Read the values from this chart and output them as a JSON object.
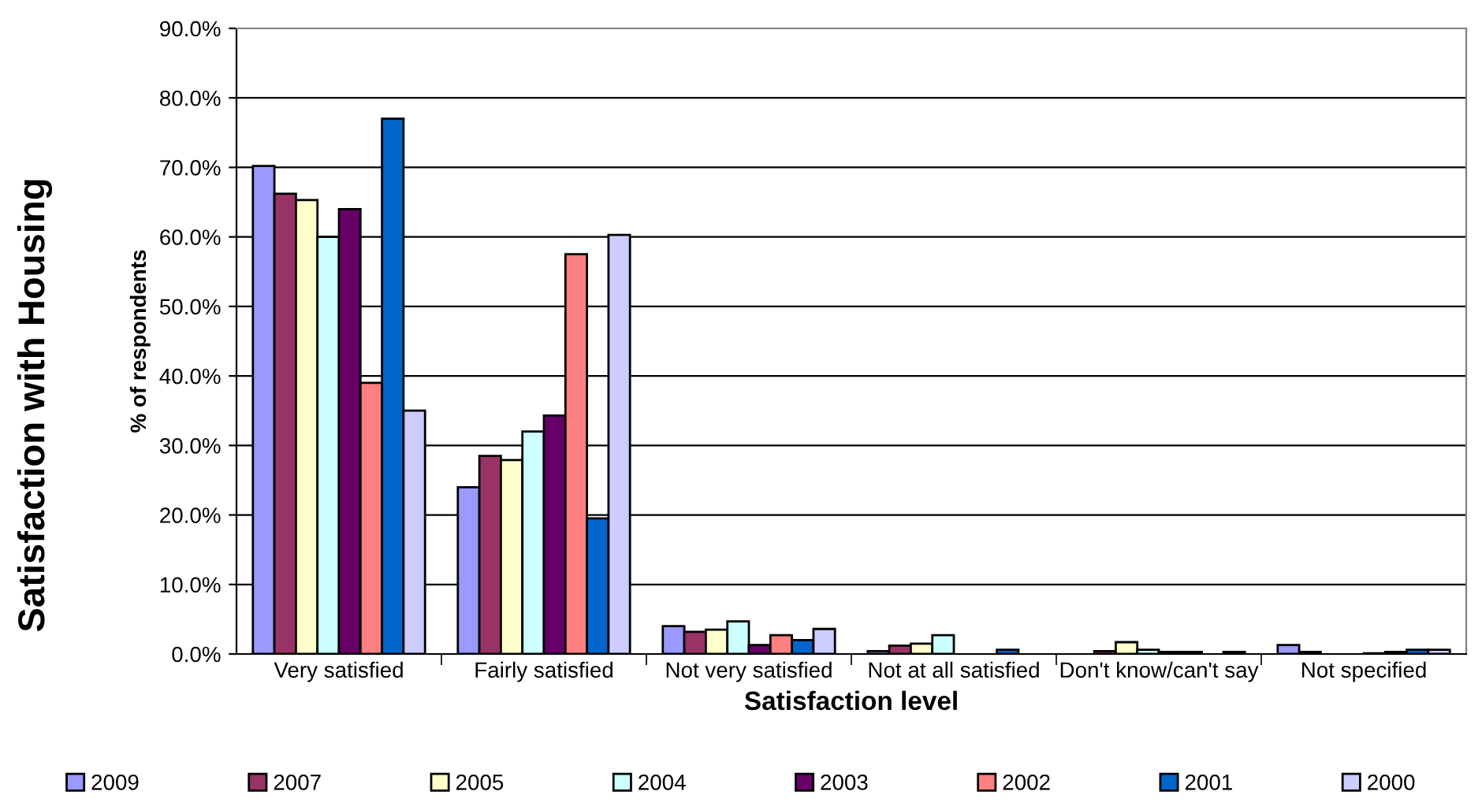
{
  "chart_data": {
    "type": "bar",
    "title": "Satisfaction with Housing",
    "xlabel": "Satisfaction level",
    "ylabel": "% of respondents",
    "categories": [
      "Very satisfied",
      "Fairly satisfied",
      "Not very satisfied",
      "Not at all satisfied",
      "Don't know/can't say",
      "Not specified"
    ],
    "series": [
      {
        "name": "2009",
        "color": "#9999ff",
        "values": [
          70.2,
          24.0,
          4.0,
          0.4,
          null,
          1.3
        ]
      },
      {
        "name": "2007",
        "color": "#993366",
        "values": [
          66.2,
          28.5,
          3.2,
          1.2,
          0.4,
          0.3
        ]
      },
      {
        "name": "2005",
        "color": "#ffffcc",
        "values": [
          65.3,
          27.9,
          3.5,
          1.5,
          1.7,
          null
        ]
      },
      {
        "name": "2004",
        "color": "#ccffff",
        "values": [
          60.0,
          32.0,
          4.7,
          2.7,
          0.6,
          null
        ]
      },
      {
        "name": "2003",
        "color": "#660066",
        "values": [
          64.0,
          34.3,
          1.3,
          null,
          0.3,
          0.1
        ]
      },
      {
        "name": "2002",
        "color": "#ff8080",
        "values": [
          39.0,
          57.5,
          2.7,
          null,
          0.3,
          0.3
        ]
      },
      {
        "name": "2001",
        "color": "#0066cc",
        "values": [
          77.0,
          19.5,
          2.0,
          0.6,
          null,
          0.6
        ]
      },
      {
        "name": "2000",
        "color": "#ccccff",
        "values": [
          35.0,
          60.3,
          3.6,
          null,
          0.3,
          0.6
        ]
      }
    ],
    "ylim": [
      0,
      90
    ],
    "yticks": [
      {
        "value": 0,
        "label": "0.0%"
      },
      {
        "value": 10,
        "label": "10.0%"
      },
      {
        "value": 20,
        "label": "20.0%"
      },
      {
        "value": 30,
        "label": "30.0%"
      },
      {
        "value": 40,
        "label": "40.0%"
      },
      {
        "value": 50,
        "label": "50.0%"
      },
      {
        "value": 60,
        "label": "60.0%"
      },
      {
        "value": 70,
        "label": "70.0%"
      },
      {
        "value": 80,
        "label": "80.0%"
      },
      {
        "value": 90,
        "label": "90.0%"
      }
    ],
    "grid": "y",
    "legend": "bottom"
  }
}
